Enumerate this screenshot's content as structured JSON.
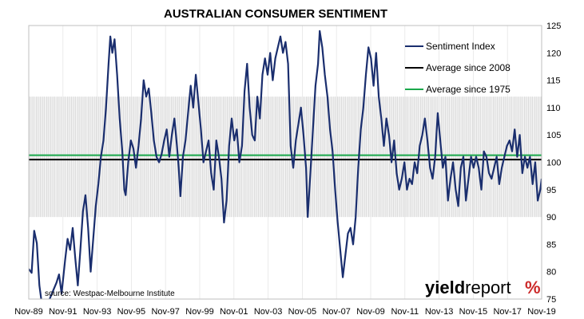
{
  "chart_data": {
    "type": "line",
    "title": "AUSTRALIAN CONSUMER SENTIMENT",
    "x_tick_labels": [
      "Nov-89",
      "Nov-91",
      "Nov-93",
      "Nov-95",
      "Nov-97",
      "Nov-99",
      "Nov-01",
      "Nov-03",
      "Nov-05",
      "Nov-07",
      "Nov-09",
      "Nov-11",
      "Nov-13",
      "Nov-15",
      "Nov-17",
      "Nov-19"
    ],
    "x_range": [
      1989.83,
      2019.83
    ],
    "y_tick_labels": [
      "125",
      "120",
      "115",
      "110",
      "105",
      "100",
      "95",
      "90",
      "85",
      "80",
      "75"
    ],
    "ylim": [
      75,
      125
    ],
    "y_axis_side": "right",
    "grid": "vertical lines",
    "legend_position": "top-right",
    "band": {
      "low": 90,
      "high": 112
    },
    "series": [
      {
        "name": "Sentiment Index",
        "color": "#1a2e6e",
        "points": [
          [
            1989.83,
            80.5
          ],
          [
            1990.0,
            79.8
          ],
          [
            1990.15,
            87.5
          ],
          [
            1990.3,
            85.2
          ],
          [
            1990.45,
            77.5
          ],
          [
            1990.6,
            74.0
          ],
          [
            1990.85,
            71.0
          ],
          [
            1991.05,
            75.0
          ],
          [
            1991.25,
            76.5
          ],
          [
            1991.45,
            78.0
          ],
          [
            1991.6,
            79.5
          ],
          [
            1991.75,
            76.0
          ],
          [
            1991.95,
            82.0
          ],
          [
            1992.1,
            86.0
          ],
          [
            1992.25,
            84.0
          ],
          [
            1992.4,
            88.0
          ],
          [
            1992.55,
            82.5
          ],
          [
            1992.7,
            77.5
          ],
          [
            1992.85,
            84.0
          ],
          [
            1993.0,
            91.0
          ],
          [
            1993.15,
            94.0
          ],
          [
            1993.3,
            88.0
          ],
          [
            1993.45,
            80.0
          ],
          [
            1993.6,
            86.0
          ],
          [
            1993.75,
            92.0
          ],
          [
            1993.9,
            96.0
          ],
          [
            1994.05,
            101.0
          ],
          [
            1994.2,
            104.0
          ],
          [
            1994.35,
            110.0
          ],
          [
            1994.5,
            118.0
          ],
          [
            1994.6,
            123.0
          ],
          [
            1994.72,
            120.0
          ],
          [
            1994.85,
            122.5
          ],
          [
            1995.0,
            116.0
          ],
          [
            1995.15,
            108.0
          ],
          [
            1995.3,
            102.0
          ],
          [
            1995.42,
            95.0
          ],
          [
            1995.5,
            94.0
          ],
          [
            1995.65,
            100.0
          ],
          [
            1995.8,
            104.0
          ],
          [
            1995.95,
            102.5
          ],
          [
            1996.1,
            99.0
          ],
          [
            1996.25,
            103.0
          ],
          [
            1996.4,
            108.0
          ],
          [
            1996.55,
            115.0
          ],
          [
            1996.7,
            112.0
          ],
          [
            1996.85,
            113.5
          ],
          [
            1997.0,
            109.0
          ],
          [
            1997.15,
            104.0
          ],
          [
            1997.3,
            101.0
          ],
          [
            1997.45,
            100.0
          ],
          [
            1997.6,
            101.5
          ],
          [
            1997.75,
            104.0
          ],
          [
            1997.9,
            106.0
          ],
          [
            1998.05,
            101.0
          ],
          [
            1998.2,
            105.0
          ],
          [
            1998.35,
            108.0
          ],
          [
            1998.5,
            103.0
          ],
          [
            1998.6,
            99.0
          ],
          [
            1998.7,
            93.8
          ],
          [
            1998.85,
            101.0
          ],
          [
            1999.0,
            104.0
          ],
          [
            1999.15,
            109.0
          ],
          [
            1999.3,
            114.0
          ],
          [
            1999.45,
            110.0
          ],
          [
            1999.6,
            116.0
          ],
          [
            1999.75,
            111.0
          ],
          [
            1999.9,
            106.0
          ],
          [
            2000.05,
            100.0
          ],
          [
            2000.2,
            102.0
          ],
          [
            2000.35,
            104.0
          ],
          [
            2000.5,
            98.0
          ],
          [
            2000.65,
            95.0
          ],
          [
            2000.8,
            104.0
          ],
          [
            2000.95,
            101.0
          ],
          [
            2001.1,
            97.0
          ],
          [
            2001.25,
            89.0
          ],
          [
            2001.4,
            93.0
          ],
          [
            2001.55,
            103.0
          ],
          [
            2001.7,
            108.0
          ],
          [
            2001.85,
            104.0
          ],
          [
            2002.0,
            106.0
          ],
          [
            2002.15,
            100.0
          ],
          [
            2002.3,
            103.0
          ],
          [
            2002.45,
            113.0
          ],
          [
            2002.6,
            118.0
          ],
          [
            2002.75,
            110.0
          ],
          [
            2002.9,
            105.0
          ],
          [
            2003.05,
            104.0
          ],
          [
            2003.2,
            112.0
          ],
          [
            2003.35,
            108.0
          ],
          [
            2003.5,
            116.0
          ],
          [
            2003.65,
            119.0
          ],
          [
            2003.8,
            116.0
          ],
          [
            2003.95,
            120.0
          ],
          [
            2004.1,
            115.0
          ],
          [
            2004.25,
            119.0
          ],
          [
            2004.4,
            121.0
          ],
          [
            2004.55,
            123.0
          ],
          [
            2004.7,
            120.0
          ],
          [
            2004.85,
            122.0
          ],
          [
            2005.0,
            118.0
          ],
          [
            2005.15,
            103.0
          ],
          [
            2005.3,
            99.0
          ],
          [
            2005.45,
            104.0
          ],
          [
            2005.6,
            107.0
          ],
          [
            2005.75,
            110.0
          ],
          [
            2005.9,
            105.0
          ],
          [
            2006.05,
            99.0
          ],
          [
            2006.15,
            90.0
          ],
          [
            2006.3,
            98.0
          ],
          [
            2006.45,
            106.0
          ],
          [
            2006.6,
            114.0
          ],
          [
            2006.75,
            118.0
          ],
          [
            2006.85,
            124.0
          ],
          [
            2007.0,
            121.0
          ],
          [
            2007.15,
            116.0
          ],
          [
            2007.3,
            112.0
          ],
          [
            2007.45,
            106.0
          ],
          [
            2007.6,
            102.0
          ],
          [
            2007.75,
            95.0
          ],
          [
            2007.9,
            89.0
          ],
          [
            2008.05,
            84.0
          ],
          [
            2008.2,
            79.0
          ],
          [
            2008.35,
            83.0
          ],
          [
            2008.5,
            87.0
          ],
          [
            2008.65,
            88.0
          ],
          [
            2008.8,
            85.0
          ],
          [
            2008.95,
            90.0
          ],
          [
            2009.1,
            99.0
          ],
          [
            2009.25,
            106.0
          ],
          [
            2009.4,
            110.0
          ],
          [
            2009.55,
            116.0
          ],
          [
            2009.7,
            121.0
          ],
          [
            2009.85,
            119.0
          ],
          [
            2010.0,
            114.0
          ],
          [
            2010.15,
            120.0
          ],
          [
            2010.3,
            112.0
          ],
          [
            2010.45,
            108.0
          ],
          [
            2010.6,
            103.0
          ],
          [
            2010.75,
            108.0
          ],
          [
            2010.9,
            105.0
          ],
          [
            2011.05,
            100.0
          ],
          [
            2011.2,
            104.0
          ],
          [
            2011.35,
            98.0
          ],
          [
            2011.5,
            95.0
          ],
          [
            2011.65,
            97.0
          ],
          [
            2011.8,
            100.0
          ],
          [
            2011.95,
            95.0
          ],
          [
            2012.1,
            97.0
          ],
          [
            2012.25,
            96.0
          ],
          [
            2012.4,
            100.0
          ],
          [
            2012.55,
            98.0
          ],
          [
            2012.7,
            103.0
          ],
          [
            2012.85,
            105.0
          ],
          [
            2013.0,
            108.0
          ],
          [
            2013.15,
            104.0
          ],
          [
            2013.3,
            99.0
          ],
          [
            2013.45,
            97.0
          ],
          [
            2013.6,
            101.0
          ],
          [
            2013.75,
            109.0
          ],
          [
            2013.9,
            104.0
          ],
          [
            2014.05,
            99.0
          ],
          [
            2014.2,
            101.0
          ],
          [
            2014.35,
            93.0
          ],
          [
            2014.5,
            97.0
          ],
          [
            2014.65,
            100.0
          ],
          [
            2014.8,
            95.0
          ],
          [
            2014.95,
            92.0
          ],
          [
            2015.1,
            99.0
          ],
          [
            2015.25,
            101.0
          ],
          [
            2015.4,
            93.0
          ],
          [
            2015.55,
            97.0
          ],
          [
            2015.7,
            101.0
          ],
          [
            2015.85,
            99.0
          ],
          [
            2016.0,
            101.0
          ],
          [
            2016.15,
            99.0
          ],
          [
            2016.3,
            95.0
          ],
          [
            2016.45,
            102.0
          ],
          [
            2016.6,
            101.0
          ],
          [
            2016.75,
            98.0
          ],
          [
            2016.9,
            97.0
          ],
          [
            2017.05,
            99.0
          ],
          [
            2017.2,
            101.0
          ],
          [
            2017.35,
            96.0
          ],
          [
            2017.5,
            99.0
          ],
          [
            2017.65,
            101.0
          ],
          [
            2017.8,
            103.0
          ],
          [
            2017.95,
            104.0
          ],
          [
            2018.1,
            102.0
          ],
          [
            2018.25,
            106.0
          ],
          [
            2018.4,
            101.0
          ],
          [
            2018.55,
            105.0
          ],
          [
            2018.7,
            98.0
          ],
          [
            2018.85,
            101.0
          ],
          [
            2019.0,
            99.0
          ],
          [
            2019.15,
            101.0
          ],
          [
            2019.3,
            96.0
          ],
          [
            2019.45,
            100.0
          ],
          [
            2019.6,
            93.0
          ],
          [
            2019.75,
            95.0
          ],
          [
            2019.83,
            97.0
          ]
        ]
      },
      {
        "name": "Average since 2008",
        "color": "#000000",
        "value": 100.5
      },
      {
        "name": "Average since 1975",
        "color": "#1aa84b",
        "value": 101.3
      }
    ],
    "annotations": [
      "source: Westpac-Melbourne Institute"
    ]
  },
  "branding": {
    "logo_text_yield": "yield",
    "logo_text_report": "report",
    "logo_text_symbol": "%",
    "colors": {
      "yield": "#000000",
      "report": "#000000",
      "symbol_top": "#cc2a2a",
      "symbol_bottom": "#2a9a3a"
    }
  }
}
